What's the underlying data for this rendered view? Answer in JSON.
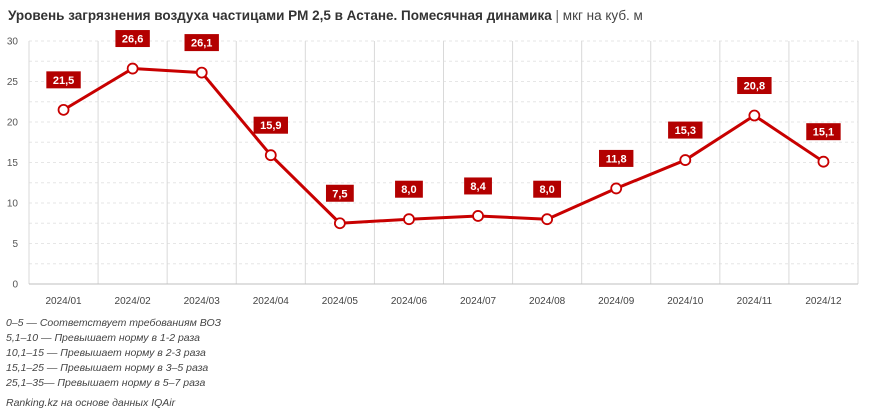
{
  "title": {
    "main": "Уровень загрязнения воздуха частицами PM 2,5 в Астане. Помесячная динамика",
    "separator": "|",
    "unit": "мкг на куб. м"
  },
  "legend": [
    "0–5 — Соответствует требованиям ВОЗ",
    "5,1–10 — Превышает норму в 1-2 раза",
    "10,1–15 — Превышает норму в 2-3 раза",
    "15,1–25 — Превышает норму в 3–5 раза",
    "25,1–35— Превышает норму в 5–7 раза"
  ],
  "source": "Ranking.kz на основе данных IQAir",
  "colors": {
    "line": "#c80000",
    "label_bg": "#b30000",
    "label_text": "#ffffff",
    "grid": "#d9d9d9"
  },
  "chart_data": {
    "type": "line",
    "categories": [
      "2024/01",
      "2024/02",
      "2024/03",
      "2024/04",
      "2024/05",
      "2024/06",
      "2024/07",
      "2024/08",
      "2024/09",
      "2024/10",
      "2024/11",
      "2024/12"
    ],
    "values": [
      21.5,
      26.6,
      26.1,
      15.9,
      7.5,
      8.0,
      8.4,
      8.0,
      11.8,
      15.3,
      20.8,
      15.1
    ],
    "data_labels": [
      "21,5",
      "26,6",
      "26,1",
      "15,9",
      "7,5",
      "8,0",
      "8,4",
      "8,0",
      "11,8",
      "15,3",
      "20,8",
      "15,1"
    ],
    "yticks": [
      "0",
      "5",
      "10",
      "15",
      "20",
      "25",
      "30"
    ],
    "ylim": [
      0,
      30
    ],
    "grid": true
  }
}
